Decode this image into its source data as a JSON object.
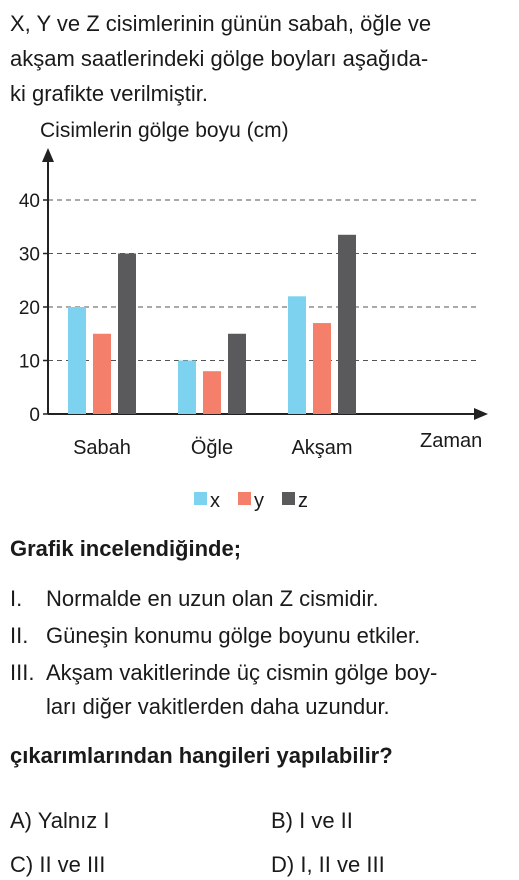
{
  "intro": {
    "lines": [
      "X, Y ve Z cisimlerinin günün sabah, öğle ve",
      "akşam saatlerindeki gölge boyları aşağıda-",
      "ki grafikte verilmiştir."
    ]
  },
  "chart_data": {
    "type": "bar",
    "ylabel": "Cisimlerin gölge boyu (cm)",
    "xlabel": "Zaman",
    "categories": [
      "Sabah",
      "Öğle",
      "Akşam"
    ],
    "y_ticks": [
      "0",
      "10",
      "20",
      "30",
      "40"
    ],
    "ylim": [
      0,
      45
    ],
    "grid": "dashed horizontal",
    "legend_position": "bottom-center",
    "series": [
      {
        "name": "x",
        "color": "#7dd3ef",
        "values": [
          20,
          10,
          22
        ]
      },
      {
        "name": "y",
        "color": "#f4806b",
        "values": [
          15,
          8,
          17
        ]
      },
      {
        "name": "z",
        "color": "#5a5a5c",
        "values": [
          30,
          15,
          33.5
        ]
      }
    ]
  },
  "heading": "Grafik incelendiğinde;",
  "statements": [
    {
      "num": "I.",
      "lines": [
        "Normalde en uzun olan Z cismidir."
      ]
    },
    {
      "num": "II.",
      "lines": [
        "Güneşin konumu gölge boyunu etkiler."
      ]
    },
    {
      "num": "III.",
      "lines": [
        "Akşam vakitlerinde üç cismin gölge boy-",
        "ları diğer vakitlerden daha uzundur."
      ]
    }
  ],
  "question": "çıkarımlarından hangileri yapılabilir?",
  "options": [
    {
      "label": "A) Yalnız I"
    },
    {
      "label": "B) I ve II"
    },
    {
      "label": "C) II ve III"
    },
    {
      "label": "D) I, II ve III"
    }
  ]
}
